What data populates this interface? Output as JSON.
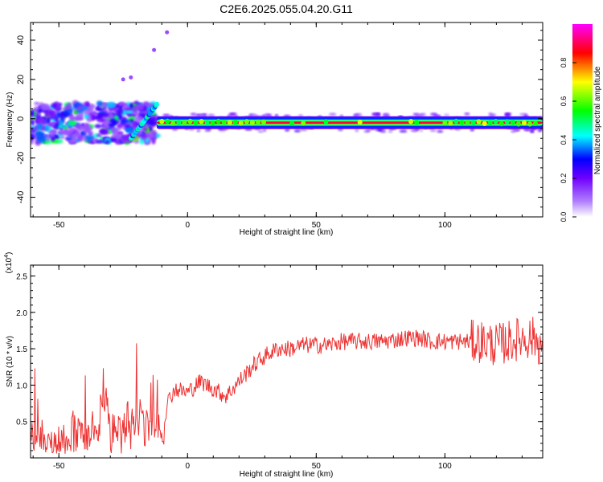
{
  "title": "C2E6.2025.055.04.20.G11",
  "chart_data": [
    {
      "type": "heatmap",
      "xlabel": "Height of straight line (km)",
      "ylabel": "Frequency (Hz)",
      "xlim": [
        -61,
        138
      ],
      "ylim": [
        -50,
        49
      ],
      "xticks": [
        -50,
        0,
        50,
        100
      ],
      "yticks": [
        -40,
        -20,
        0,
        20,
        40
      ],
      "colorbar": {
        "label": "Normalized spectral amplitude",
        "range": [
          0,
          1
        ],
        "ticks": [
          "0.0",
          "0.2",
          "0.4",
          "0.6",
          "0.8"
        ],
        "colormap": [
          "#ffffff",
          "#8000ff",
          "#0000ff",
          "#00ffff",
          "#00ff00",
          "#ffff00",
          "#ff0000",
          "#ff00ff"
        ]
      },
      "ridge": {
        "frequency_hz": -2,
        "x_range": [
          -12,
          138
        ],
        "peak_amplitude": 1.0
      },
      "scatter_region": {
        "x_range": [
          -61,
          -12
        ],
        "frequency_range": [
          -12,
          8
        ]
      },
      "outliers": [
        {
          "x": -25,
          "frequency_hz": 20
        },
        {
          "x": -22,
          "frequency_hz": 21
        },
        {
          "x": -13,
          "frequency_hz": 35
        },
        {
          "x": -8,
          "frequency_hz": 44
        }
      ]
    },
    {
      "type": "line",
      "xlabel": "Height of straight line (km)",
      "ylabel": "SNR (10 * v/v)",
      "y_multiplier": "(x10^4)",
      "xlim": [
        -61,
        138
      ],
      "ylim": [
        0,
        2.65
      ],
      "xticks": [
        -50,
        0,
        50,
        100
      ],
      "yticks": [
        "0.5",
        "1.0",
        "1.5",
        "2.0",
        "2.5"
      ],
      "color": "#ee3333",
      "series": [
        {
          "x": [
            -61,
            -55,
            -50,
            -45,
            -40,
            -35,
            -33,
            -30,
            -25,
            -20,
            -15,
            -10,
            -8,
            -5,
            0,
            5,
            10,
            15,
            20,
            25,
            30,
            35,
            40,
            45,
            50,
            55,
            60,
            65,
            70,
            75,
            80,
            85,
            90,
            95,
            100,
            105,
            110,
            115,
            120,
            125,
            130,
            135,
            138
          ],
          "values": [
            0.35,
            0.2,
            0.22,
            0.25,
            0.3,
            0.35,
            0.9,
            0.42,
            0.45,
            0.5,
            0.55,
            0.35,
            0.75,
            0.95,
            0.9,
            1.05,
            0.95,
            0.85,
            1.05,
            1.25,
            1.4,
            1.5,
            1.5,
            1.55,
            1.55,
            1.55,
            1.6,
            1.6,
            1.6,
            1.6,
            1.62,
            1.65,
            1.65,
            1.6,
            1.6,
            1.6,
            1.6,
            1.6,
            1.55,
            1.6,
            1.65,
            1.65,
            1.5
          ]
        }
      ]
    }
  ]
}
